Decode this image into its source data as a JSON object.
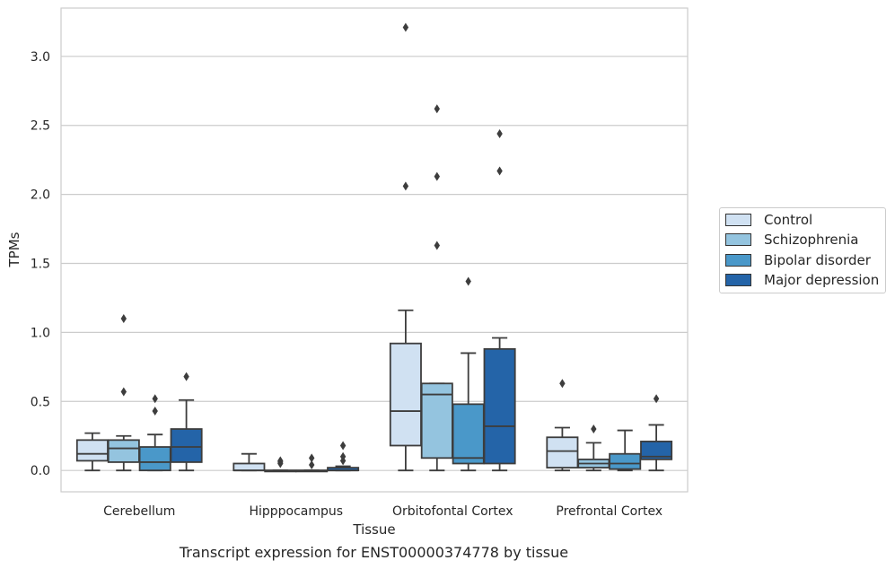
{
  "chart_data": {
    "type": "box",
    "title": "Transcript expression for ENST00000374778 by tissue",
    "xlabel": "Tissue",
    "ylabel": "TPMs",
    "ylim": [
      -0.155,
      3.35
    ],
    "yticks": [
      "0.0",
      "0.5",
      "1.0",
      "1.5",
      "2.0",
      "2.5",
      "3.0"
    ],
    "categories": [
      "Cerebellum",
      "Hipppocampus",
      "Orbitofontal Cortex",
      "Prefrontal Cortex"
    ],
    "grid": true,
    "legend_position": "right",
    "series": [
      {
        "name": "Control",
        "color": "#d0e1f2",
        "boxes": [
          {
            "whislo": 0.0,
            "q1": 0.07,
            "med": 0.12,
            "q3": 0.22,
            "whishi": 0.27,
            "fliers": []
          },
          {
            "whislo": 0.0,
            "q1": 0.0,
            "med": 0.0,
            "q3": 0.05,
            "whishi": 0.12,
            "fliers": []
          },
          {
            "whislo": 0.0,
            "q1": 0.18,
            "med": 0.43,
            "q3": 0.92,
            "whishi": 1.16,
            "fliers": [
              2.06,
              3.21
            ]
          },
          {
            "whislo": 0.0,
            "q1": 0.02,
            "med": 0.14,
            "q3": 0.24,
            "whishi": 0.31,
            "fliers": [
              0.63
            ]
          }
        ]
      },
      {
        "name": "Schizophrenia",
        "color": "#94c4df",
        "boxes": [
          {
            "whislo": 0.0,
            "q1": 0.06,
            "med": 0.16,
            "q3": 0.22,
            "whishi": 0.25,
            "fliers": [
              0.57,
              1.1
            ]
          },
          {
            "whislo": 0.0,
            "q1": 0.0,
            "med": 0.0,
            "q3": 0.0,
            "whishi": 0.0,
            "fliers": [
              0.05,
              0.06,
              0.07
            ]
          },
          {
            "whislo": 0.0,
            "q1": 0.09,
            "med": 0.55,
            "q3": 0.63,
            "whishi": 0.63,
            "fliers": [
              1.63,
              2.13,
              2.62
            ]
          },
          {
            "whislo": 0.0,
            "q1": 0.02,
            "med": 0.05,
            "q3": 0.08,
            "whishi": 0.2,
            "fliers": [
              0.3
            ]
          }
        ]
      },
      {
        "name": "Bipolar disorder",
        "color": "#4a98c9",
        "boxes": [
          {
            "whislo": 0.0,
            "q1": 0.0,
            "med": 0.06,
            "q3": 0.17,
            "whishi": 0.26,
            "fliers": [
              0.43,
              0.52
            ]
          },
          {
            "whislo": 0.0,
            "q1": 0.0,
            "med": 0.0,
            "q3": 0.0,
            "whishi": 0.0,
            "fliers": [
              0.04,
              0.09
            ]
          },
          {
            "whislo": 0.0,
            "q1": 0.05,
            "med": 0.09,
            "q3": 0.48,
            "whishi": 0.85,
            "fliers": [
              1.37
            ]
          },
          {
            "whislo": 0.0,
            "q1": 0.01,
            "med": 0.05,
            "q3": 0.12,
            "whishi": 0.29,
            "fliers": []
          }
        ]
      },
      {
        "name": "Major depression",
        "color": "#2464a8",
        "boxes": [
          {
            "whislo": 0.0,
            "q1": 0.06,
            "med": 0.17,
            "q3": 0.3,
            "whishi": 0.51,
            "fliers": [
              0.68
            ]
          },
          {
            "whislo": 0.0,
            "q1": 0.0,
            "med": 0.0,
            "q3": 0.02,
            "whishi": 0.03,
            "fliers": [
              0.07,
              0.1,
              0.18
            ]
          },
          {
            "whislo": 0.0,
            "q1": 0.05,
            "med": 0.32,
            "q3": 0.88,
            "whishi": 0.96,
            "fliers": [
              2.17,
              2.44
            ]
          },
          {
            "whislo": 0.0,
            "q1": 0.08,
            "med": 0.1,
            "q3": 0.21,
            "whishi": 0.33,
            "fliers": [
              0.52
            ]
          }
        ]
      }
    ]
  }
}
